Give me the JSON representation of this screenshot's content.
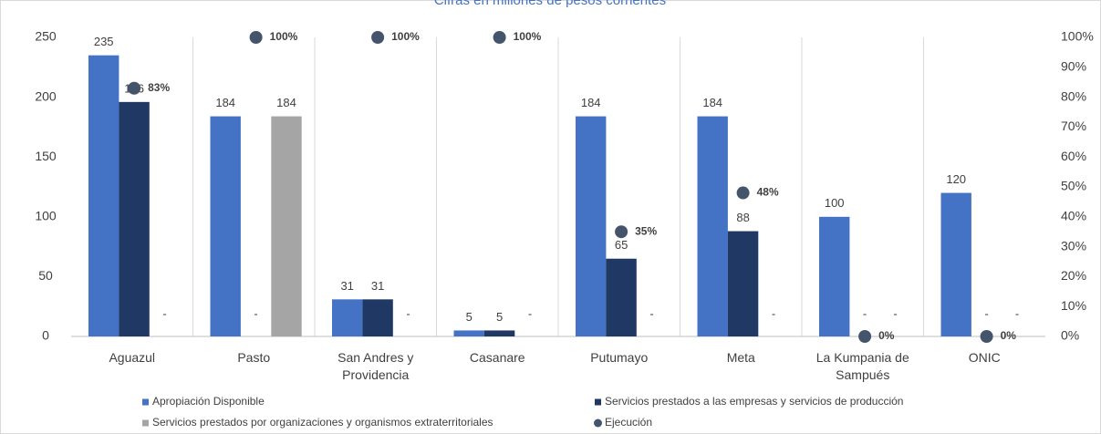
{
  "chart_data": {
    "type": "bar",
    "title": "Cifras en millones de pesos corrientes",
    "categories": [
      "Aguazul",
      "Pasto",
      "San Andres y Providencia",
      "Casanare",
      "Putumayo",
      "Meta",
      "La Kumpania de Sampués",
      "ONIC"
    ],
    "series": [
      {
        "name": "Apropiación Disponible",
        "color": "#4472c4",
        "values": [
          235,
          184,
          31,
          5,
          184,
          184,
          100,
          120
        ]
      },
      {
        "name": "Servicios prestados a las empresas y servicios de producción",
        "color": "#1f3864",
        "values": [
          196,
          null,
          31,
          5,
          65,
          88,
          null,
          null
        ],
        "value_labels": [
          "196",
          "-",
          "31",
          "5",
          "65",
          "88",
          "-",
          "-"
        ]
      },
      {
        "name": "Servicios prestados por organizaciones y organismos extraterritoriales",
        "color": "#a5a5a5",
        "values": [
          null,
          184,
          null,
          null,
          null,
          null,
          null,
          null
        ],
        "value_labels": [
          "-",
          "184",
          "-",
          "-",
          "-",
          "-",
          "-",
          "-"
        ]
      },
      {
        "name": "Ejecución",
        "color": "#44546a",
        "axis": "y2",
        "marker": "circle",
        "values": [
          83,
          100,
          100,
          100,
          35,
          48,
          0,
          0
        ],
        "value_labels": [
          "83%",
          "100%",
          "100%",
          "100%",
          "35%",
          "48%",
          "0%",
          "0%"
        ]
      }
    ],
    "ylim": [
      0,
      250
    ],
    "yticks": [
      0,
      50,
      100,
      150,
      200,
      250
    ],
    "y2lim": [
      0,
      100
    ],
    "y2ticks": [
      {
        "value": 0,
        "label": "0%"
      },
      {
        "value": 10,
        "label": "10%"
      },
      {
        "value": 20,
        "label": "20%"
      },
      {
        "value": 30,
        "label": "30%"
      },
      {
        "value": 40,
        "label": "40%"
      },
      {
        "value": 50,
        "label": "50%"
      },
      {
        "value": 60,
        "label": "60%"
      },
      {
        "value": 70,
        "label": "70%"
      },
      {
        "value": 80,
        "label": "80%"
      },
      {
        "value": 90,
        "label": "90%"
      },
      {
        "value": 100,
        "label": "100%"
      }
    ],
    "legend": "bottom"
  }
}
